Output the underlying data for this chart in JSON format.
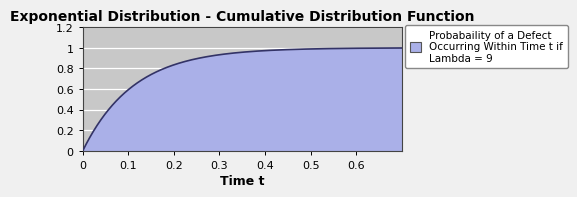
{
  "title": "Exponential Distribution - Cumulative Distribution Function",
  "xlabel": "Time t",
  "lambda": 9,
  "x_min": 0,
  "x_max": 0.7,
  "y_min": 0,
  "y_max": 1.2,
  "x_ticks": [
    0,
    0.1,
    0.2,
    0.3,
    0.4,
    0.5,
    0.6
  ],
  "y_ticks": [
    0,
    0.2,
    0.4,
    0.6,
    0.8,
    1.0,
    1.2
  ],
  "fill_color": "#aab0e8",
  "line_color": "#333366",
  "line_width": 1.2,
  "plot_bg_color": "#c8c8c8",
  "fig_bg_color": "#f0f0f0",
  "grid_color": "#ffffff",
  "legend_label": "Probabaility of a Defect\nOccurring Within Time t if\nLambda = 9",
  "legend_marker_color": "#aab0e8",
  "title_fontsize": 10,
  "xlabel_fontsize": 9,
  "tick_fontsize": 8,
  "legend_fontsize": 7.5
}
